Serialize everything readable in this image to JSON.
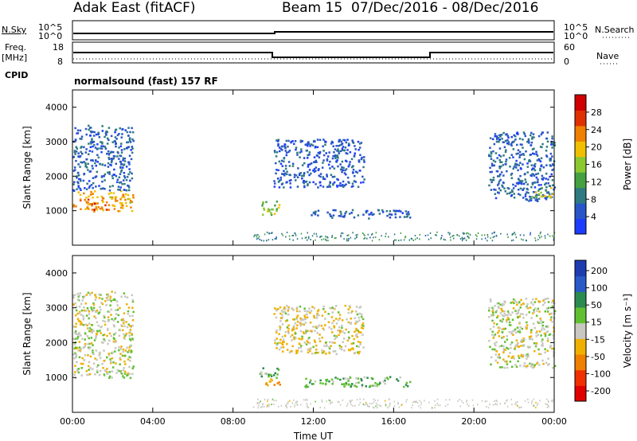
{
  "header": {
    "station": "Adak East (fitACF)",
    "beam": "Beam 15",
    "dates": "07/Dec/2016 - 08/Dec/2016"
  },
  "summary": {
    "nsky_label": "N.Sky",
    "nsearch_label": "N.Search",
    "freq_label_1": "Freq.",
    "freq_label_2": "[MHz]",
    "nave_label": "Nave",
    "cpid_label": "CPID",
    "cpid_value": "normalsound (fast) 157 RF",
    "left_ticks_top": [
      "10^5",
      "10^0"
    ],
    "right_ticks_top": [
      "10^5",
      "10^0"
    ],
    "freq_ticks": [
      "18",
      "8"
    ],
    "nave_ticks": [
      "60",
      "0"
    ]
  },
  "chart_data": [
    {
      "type": "heatmap",
      "name": "power",
      "ylabel": "Slant Range [km]",
      "yticks": [
        "1000",
        "2000",
        "3000",
        "4000"
      ],
      "ylim": [
        0,
        4500
      ],
      "xticks": [
        "00:00",
        "04:00",
        "08:00",
        "12:00",
        "16:00",
        "20:00",
        "00:00"
      ],
      "xlim": [
        0,
        24
      ],
      "colorbar_label": "Power [dB]",
      "colorbar_ticks": [
        "4",
        "8",
        "12",
        "16",
        "20",
        "24",
        "28"
      ],
      "colorbar_range": [
        0,
        30
      ],
      "colors": [
        "#1e3cff",
        "#2a55c8",
        "#2f7a80",
        "#44a040",
        "#8cc830",
        "#f0c000",
        "#f08000",
        "#e03000",
        "#d00000"
      ],
      "regions": [
        {
          "t": [
            0.0,
            3.0
          ],
          "r": [
            1000,
            1600
          ],
          "level": 20
        },
        {
          "t": [
            0.0,
            3.0
          ],
          "r": [
            1600,
            3500
          ],
          "level": 6
        },
        {
          "t": [
            0.9,
            1.7
          ],
          "r": [
            1050,
            1250
          ],
          "level": 26
        },
        {
          "t": [
            9.3,
            10.3
          ],
          "r": [
            900,
            1300
          ],
          "level": 14
        },
        {
          "t": [
            10.0,
            14.5
          ],
          "r": [
            1700,
            3100
          ],
          "level": 5
        },
        {
          "t": [
            11.5,
            16.8
          ],
          "r": [
            800,
            1050
          ],
          "level": 6
        },
        {
          "t": [
            20.7,
            24.0
          ],
          "r": [
            1300,
            3300
          ],
          "level": 6
        },
        {
          "t": [
            22.8,
            24.0
          ],
          "r": [
            1400,
            1700
          ],
          "level": 14
        }
      ]
    },
    {
      "type": "heatmap",
      "name": "velocity",
      "ylabel": "Slant Range [km]",
      "yticks": [
        "1000",
        "2000",
        "3000",
        "4000"
      ],
      "ylim": [
        0,
        4500
      ],
      "xticks": [
        "00:00",
        "04:00",
        "08:00",
        "12:00",
        "16:00",
        "20:00",
        "00:00"
      ],
      "xlim": [
        0,
        24
      ],
      "xlabel": "Time UT",
      "colorbar_label": "Velocity [m s⁻¹]",
      "colorbar_ticks": [
        "200",
        "100",
        "50",
        "15",
        "-15",
        "-50",
        "-100",
        "-200"
      ],
      "colorbar_range": [
        -250,
        250
      ],
      "colors": [
        "#e00000",
        "#f03000",
        "#f08000",
        "#f0b000",
        "#c8c8c0",
        "#60c030",
        "#2a8a50",
        "#2a5ac8",
        "#1e3cb0"
      ],
      "regions": [
        {
          "t": [
            0.0,
            3.0
          ],
          "r": [
            1000,
            3500
          ],
          "level": 0
        },
        {
          "t": [
            9.3,
            10.3
          ],
          "r": [
            800,
            1000
          ],
          "level": -80
        },
        {
          "t": [
            9.3,
            10.3
          ],
          "r": [
            1000,
            1300
          ],
          "level": 60
        },
        {
          "t": [
            10.0,
            14.5
          ],
          "r": [
            1700,
            3100
          ],
          "level": -20
        },
        {
          "t": [
            11.5,
            16.8
          ],
          "r": [
            750,
            1050
          ],
          "level": 60
        },
        {
          "t": [
            20.7,
            24.0
          ],
          "r": [
            1300,
            3300
          ],
          "level": 0
        }
      ]
    }
  ]
}
